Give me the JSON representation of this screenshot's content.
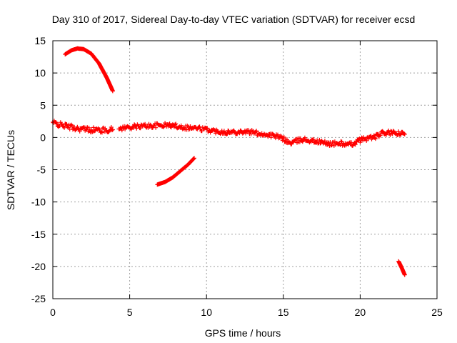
{
  "chart_data": {
    "type": "scatter",
    "title": "Day 310 of 2017, Sidereal Day-to-day VTEC variation (SDTVAR) for receiver ecsd",
    "xlabel": "GPS time / hours",
    "ylabel": "SDTVAR / TECUs",
    "xlim": [
      0,
      25
    ],
    "ylim": [
      -25,
      15
    ],
    "xticks": [
      0,
      5,
      10,
      15,
      20,
      25
    ],
    "yticks": [
      15,
      10,
      5,
      0,
      -5,
      -10,
      -15,
      -20,
      -25
    ],
    "grid": true,
    "marker": "+",
    "color": "#ff0000",
    "series": [
      {
        "name": "arc-1",
        "points": [
          [
            0.8,
            12.9
          ],
          [
            1.2,
            13.5
          ],
          [
            1.6,
            13.8
          ],
          [
            2.0,
            13.7
          ],
          [
            2.5,
            13.0
          ],
          [
            3.0,
            11.5
          ],
          [
            3.5,
            9.3
          ],
          [
            3.9,
            7.2
          ]
        ]
      },
      {
        "name": "arc-2",
        "points": [
          [
            0.0,
            2.3
          ],
          [
            0.4,
            2.0
          ],
          [
            0.8,
            1.8
          ],
          [
            1.2,
            1.6
          ],
          [
            1.6,
            1.4
          ],
          [
            2.0,
            1.3
          ],
          [
            2.4,
            1.2
          ],
          [
            2.8,
            1.2
          ],
          [
            3.2,
            1.1
          ],
          [
            3.6,
            1.2
          ],
          [
            3.9,
            1.2
          ]
        ],
        "spread": 0.8
      },
      {
        "name": "arc-3",
        "points": [
          [
            4.3,
            1.4
          ],
          [
            5.0,
            1.6
          ],
          [
            5.5,
            1.7
          ],
          [
            6.0,
            1.8
          ],
          [
            6.5,
            1.8
          ],
          [
            7.0,
            1.9
          ],
          [
            7.5,
            1.9
          ],
          [
            8.0,
            1.8
          ],
          [
            8.5,
            1.6
          ],
          [
            9.0,
            1.5
          ],
          [
            9.5,
            1.4
          ],
          [
            10.0,
            1.2
          ],
          [
            10.5,
            1.0
          ],
          [
            11.0,
            0.9
          ],
          [
            11.5,
            0.8
          ],
          [
            12.0,
            0.9
          ],
          [
            12.5,
            0.9
          ],
          [
            13.0,
            0.8
          ],
          [
            13.5,
            0.6
          ],
          [
            14.0,
            0.4
          ],
          [
            14.5,
            0.2
          ],
          [
            15.0,
            -0.2
          ],
          [
            15.4,
            -0.9
          ],
          [
            15.8,
            -0.6
          ],
          [
            16.3,
            -0.3
          ],
          [
            16.8,
            -0.5
          ],
          [
            17.3,
            -0.7
          ],
          [
            17.8,
            -0.9
          ],
          [
            18.3,
            -1.0
          ],
          [
            18.8,
            -0.9
          ],
          [
            19.2,
            -1.2
          ],
          [
            19.6,
            -0.9
          ],
          [
            20.0,
            -0.4
          ],
          [
            20.5,
            -0.1
          ],
          [
            21.0,
            0.1
          ],
          [
            21.5,
            0.7
          ],
          [
            22.0,
            0.7
          ],
          [
            22.5,
            0.6
          ],
          [
            22.9,
            0.5
          ]
        ],
        "spread": 0.7
      },
      {
        "name": "arc-4",
        "points": [
          [
            6.8,
            -7.3
          ],
          [
            7.3,
            -6.9
          ],
          [
            7.8,
            -6.2
          ],
          [
            8.3,
            -5.2
          ],
          [
            8.8,
            -4.2
          ],
          [
            9.2,
            -3.2
          ]
        ]
      },
      {
        "name": "arc-5",
        "points": [
          [
            22.5,
            -19.2
          ],
          [
            22.7,
            -20.2
          ],
          [
            22.9,
            -21.3
          ]
        ]
      }
    ]
  }
}
